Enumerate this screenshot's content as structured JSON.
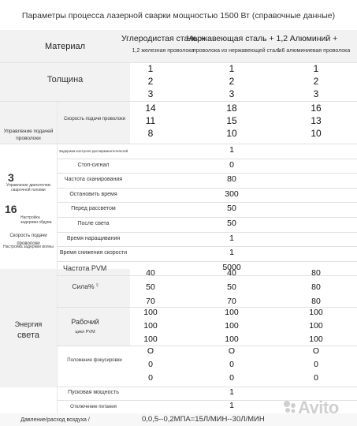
{
  "title": "Параметры процесса лазерной сварки мощностью 1500 Вт (справочные данные)",
  "header": {
    "material": "Материал",
    "columns": [
      {
        "name": "Углеродистая сталь +",
        "sub": "1,2 железная проволока"
      },
      {
        "name": "Нержавеющая сталь + 1,2",
        "sub": "проволока из нержавеющей стали"
      },
      {
        "name": "Алюминий +",
        "sub": "1.6 алюминиевая проволока"
      }
    ]
  },
  "thickness": {
    "label": "Толщина",
    "rows": [
      [
        "1",
        "1",
        "1"
      ],
      [
        "2",
        "2",
        "2"
      ],
      [
        "3",
        "3",
        "3"
      ]
    ]
  },
  "wire_feed": {
    "group_label": "Управление подачей проволоки",
    "label": "Скорость подачи проволоки",
    "rows": [
      [
        "14",
        "18",
        "16"
      ],
      [
        "11",
        "15",
        "13"
      ],
      [
        "8",
        "10",
        "10"
      ]
    ]
  },
  "single_rows": [
    {
      "label": "Задержка контроля деспирманетьтельтей",
      "value": "1",
      "small": true
    },
    {
      "label": "Стоп-сигнал",
      "value": "0",
      "small": false
    },
    {
      "label": "Частота сканирования",
      "value": "80",
      "small": false
    },
    {
      "label": "Остановить время",
      "value": "300",
      "small": false
    },
    {
      "label": "Перед рассветом",
      "value": "50",
      "small": false
    },
    {
      "label": "После света",
      "value": "50",
      "small": false
    },
    {
      "label": "Время наращивания",
      "value": "1",
      "small": false
    },
    {
      "label": "Время снижения скорости",
      "value": "1",
      "small": false
    },
    {
      "label": "Частота PVM",
      "value": "5000",
      "small": false
    }
  ],
  "side_notes": {
    "n3": "3",
    "n3_text": "Управление двигателем сварочной головки",
    "n16": "16",
    "n16_text": "Настройка задержки обдува",
    "wire_speed": "Скорость подачи проволоки",
    "wire_setting": "Настройка задержки волны"
  },
  "energy": {
    "label_line1": "Энергия",
    "label_line2": "света",
    "power_label": "Сила%",
    "power_rows": [
      [
        "40",
        "40",
        "80"
      ],
      [
        "50",
        "50",
        "80"
      ],
      [
        "70",
        "70",
        "80"
      ]
    ],
    "duty_label": "Рабочий",
    "duty_sub": "цикл PVM",
    "duty_rows": [
      [
        "100",
        "100",
        "100"
      ],
      [
        "100",
        "100",
        "100"
      ],
      [
        "100",
        "100",
        "100"
      ]
    ]
  },
  "focus": {
    "label": "Положение фокусировки",
    "rows": [
      [
        "O",
        "O",
        "O"
      ],
      [
        "0",
        "0",
        "0"
      ],
      [
        "0",
        "0",
        "0"
      ]
    ]
  },
  "start_power": {
    "label": "Пусковая мощность",
    "value": "1"
  },
  "power_off": {
    "label": "Отключение питания",
    "value": "1"
  },
  "air": {
    "label": "Давление/расход воздуха /",
    "value": "0,0,5--0,2МПА=15Л/МИН--30Л/МИН"
  },
  "watermark": "Avito"
}
